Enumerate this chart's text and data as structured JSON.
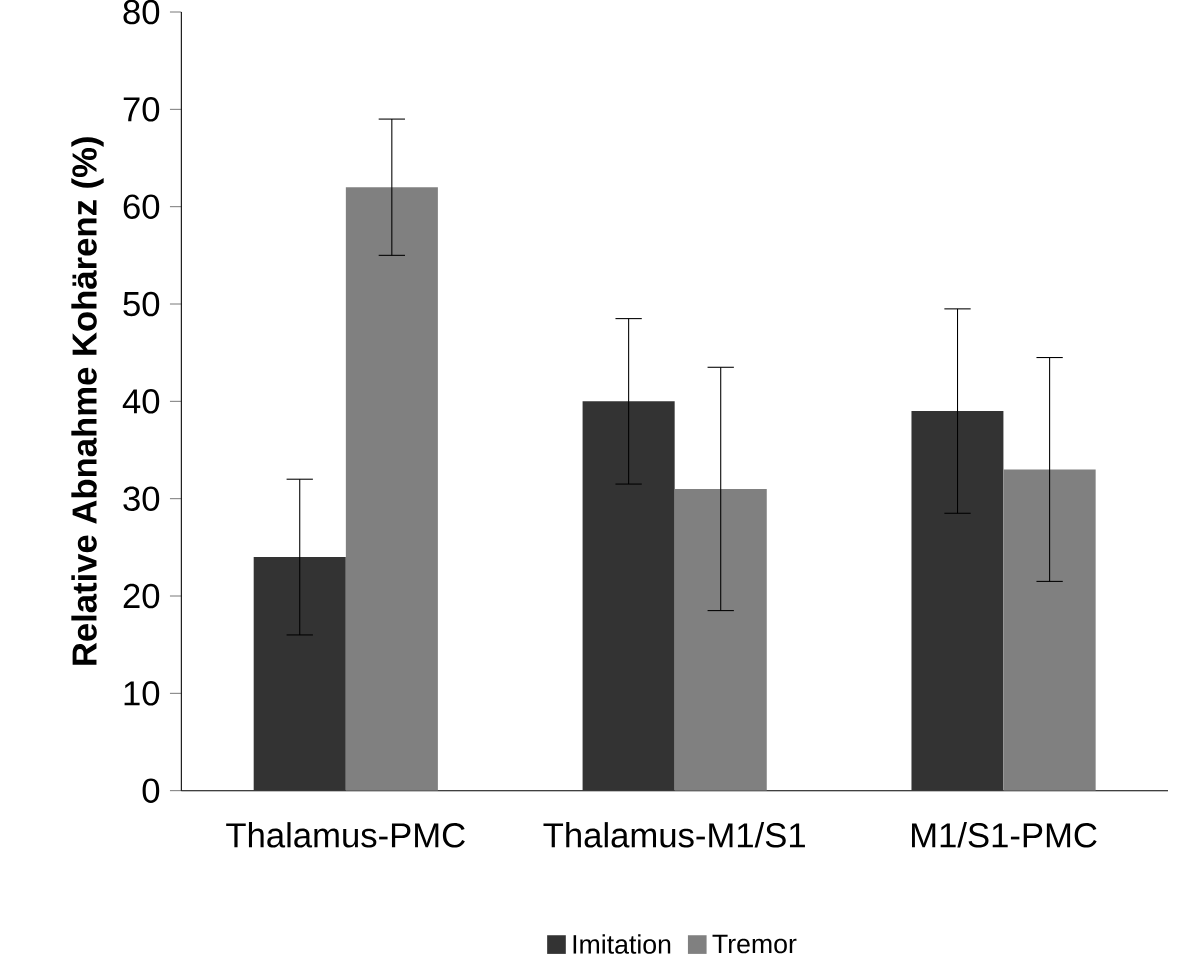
{
  "chart_data": {
    "type": "bar",
    "ylabel": "Relative Abnahme Kohärenz (%)",
    "categories": [
      "Thalamus-PMC",
      "Thalamus-M1/S1",
      "M1/S1-PMC"
    ],
    "series": [
      {
        "name": "Imitation",
        "color": "#333333",
        "values": [
          24,
          40,
          39
        ],
        "errors": [
          [
            16,
            32
          ],
          [
            31.5,
            48.5
          ],
          [
            28.5,
            49.5
          ]
        ]
      },
      {
        "name": "Tremor",
        "color": "#808080",
        "values": [
          62,
          31,
          33
        ],
        "errors": [
          [
            55,
            69
          ],
          [
            18.5,
            43.5
          ],
          [
            21.5,
            44.5
          ]
        ]
      }
    ],
    "ylim": [
      0,
      80
    ],
    "yticks": [
      0,
      10,
      20,
      30,
      40,
      50,
      60,
      70,
      80
    ],
    "grid": false,
    "legend": "bottom"
  }
}
